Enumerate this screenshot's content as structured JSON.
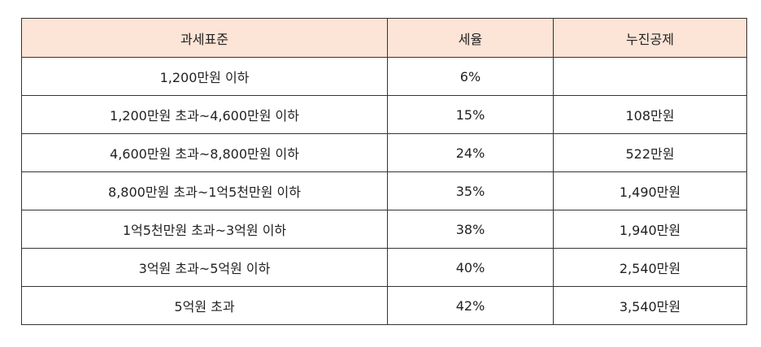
{
  "table": {
    "header_bg": "#fce4d6",
    "headers": [
      "과세표준",
      "세율",
      "누진공제"
    ],
    "rows": [
      [
        "1,200만원 이하",
        "6%",
        ""
      ],
      [
        "1,200만원 초과~4,600만원 이하",
        "15%",
        "108만원"
      ],
      [
        "4,600만원 초과~8,800만원 이하",
        "24%",
        "522만원"
      ],
      [
        "8,800만원 초과~1억5천만원 이하",
        "35%",
        "1,490만원"
      ],
      [
        "1억5천만원 초과~3억원 이하",
        "38%",
        "1,940만원"
      ],
      [
        "3억원 초과~5억원 이하",
        "40%",
        "2,540만원"
      ],
      [
        "5억원 초과",
        "42%",
        "3,540만원"
      ]
    ]
  }
}
